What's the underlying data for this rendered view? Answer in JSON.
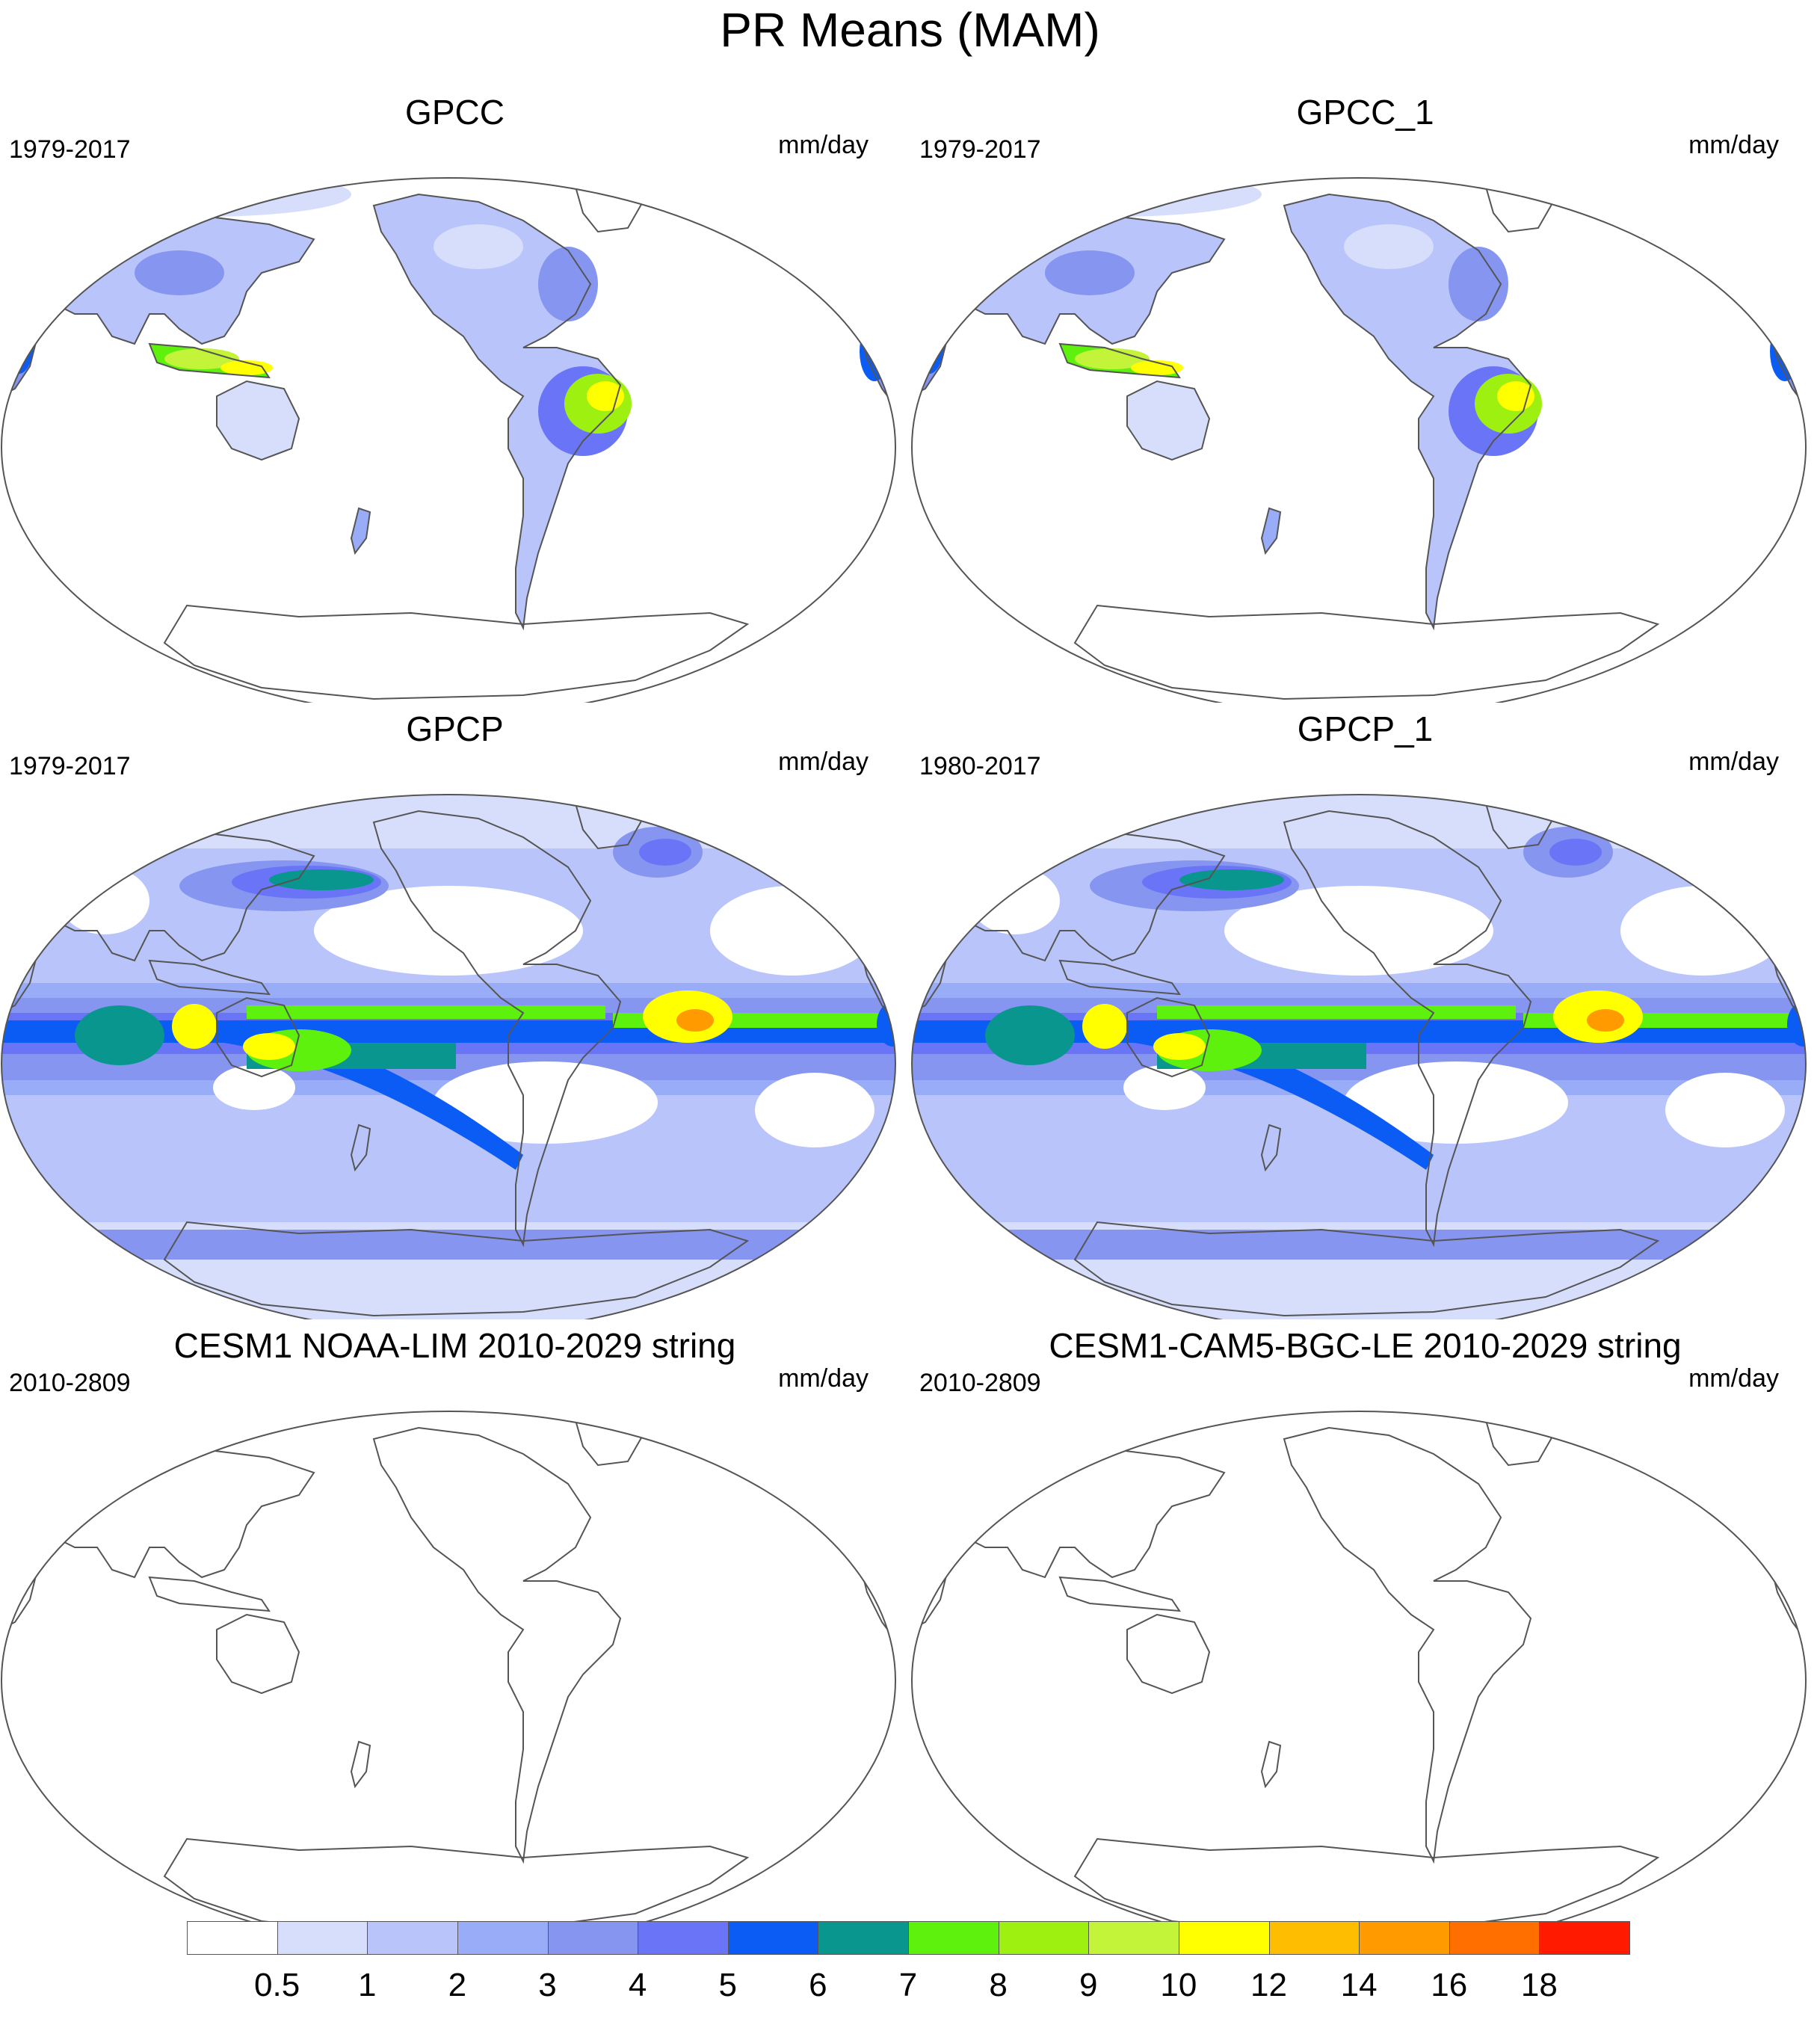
{
  "title": "PR Means (MAM)",
  "panels": [
    {
      "title": "GPCC",
      "period": "1979-2017",
      "units": "mm/day",
      "field": "land"
    },
    {
      "title": "GPCC_1",
      "period": "1979-2017",
      "units": "mm/day",
      "field": "land"
    },
    {
      "title": "GPCP",
      "period": "1979-2017",
      "units": "mm/day",
      "field": "global"
    },
    {
      "title": "GPCP_1",
      "period": "1980-2017",
      "units": "mm/day",
      "field": "global"
    },
    {
      "title": "CESM1 NOAA-LIM 2010-2029 string",
      "period": "2010-2809",
      "units": "mm/day",
      "field": "empty"
    },
    {
      "title": "CESM1-CAM5-BGC-LE 2010-2029 string",
      "period": "2010-2809",
      "units": "mm/day",
      "field": "empty"
    }
  ],
  "colorbar": {
    "labels": [
      "0.5",
      "1",
      "2",
      "3",
      "4",
      "5",
      "6",
      "7",
      "8",
      "9",
      "10",
      "12",
      "14",
      "16",
      "18"
    ],
    "colors": [
      "#ffffff",
      "#d6defb",
      "#b9c5fa",
      "#98acf8",
      "#8595f0",
      "#6a74f7",
      "#0a5cf5",
      "#08968e",
      "#5ef10d",
      "#9ef011",
      "#c3f43a",
      "#ffff00",
      "#ffbd00",
      "#ff9a00",
      "#ff6f00",
      "#ff1a00"
    ]
  }
}
